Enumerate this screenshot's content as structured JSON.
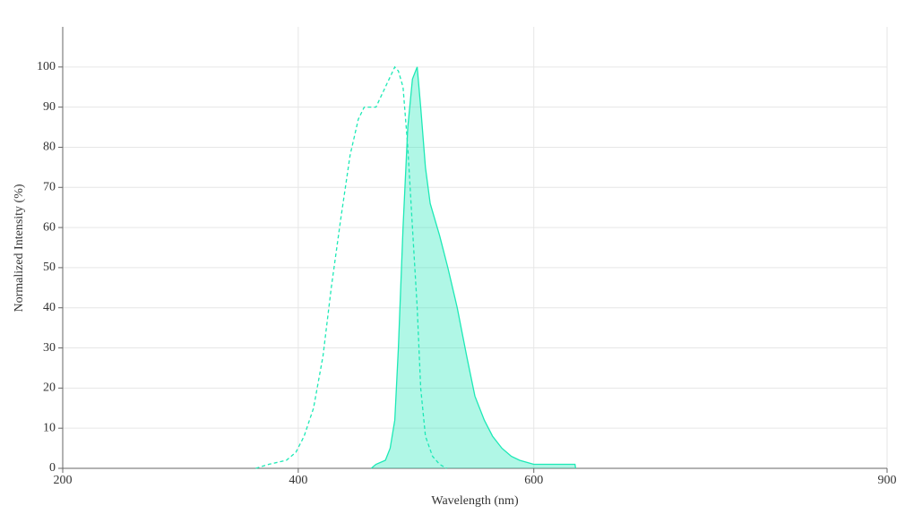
{
  "chart_data": {
    "type": "line",
    "x_label": "Wavelength (nm)",
    "y_label": "Normalized Intensity (%)",
    "xlim": [
      200,
      900
    ],
    "xticks": [
      200,
      400,
      600,
      900
    ],
    "ylim": [
      0,
      110
    ],
    "yticks": [
      0,
      10,
      20,
      30,
      40,
      50,
      60,
      70,
      80,
      90,
      100
    ],
    "grid": true,
    "series": [
      {
        "color": "#1de9b6",
        "dashed": true,
        "filled": false,
        "x": [
          364,
          375,
          390,
          398,
          405,
          413,
          421,
          428,
          436,
          444,
          451,
          456,
          462,
          466,
          474,
          482,
          485,
          489,
          493,
          497,
          501,
          504,
          508,
          514,
          520,
          526
        ],
        "values": [
          0,
          1,
          2,
          4,
          8,
          15,
          28,
          45,
          62,
          78,
          87,
          90,
          90,
          90,
          95,
          100,
          99,
          95,
          80,
          60,
          40,
          20,
          8,
          3,
          1,
          0
        ]
      },
      {
        "color": "#1de9b6",
        "dashed": false,
        "filled": true,
        "x": [
          462,
          466,
          474,
          478,
          482,
          485,
          489,
          493,
          497,
          501,
          504,
          508,
          512,
          520,
          527,
          535,
          543,
          550,
          558,
          565,
          573,
          581,
          588,
          600,
          615,
          635,
          635.5
        ],
        "values": [
          0,
          1,
          2,
          5,
          12,
          30,
          60,
          85,
          97,
          100,
          90,
          75,
          66,
          58,
          50,
          40,
          28,
          18,
          12,
          8,
          5,
          3,
          2,
          1,
          1,
          1,
          0
        ]
      }
    ]
  }
}
